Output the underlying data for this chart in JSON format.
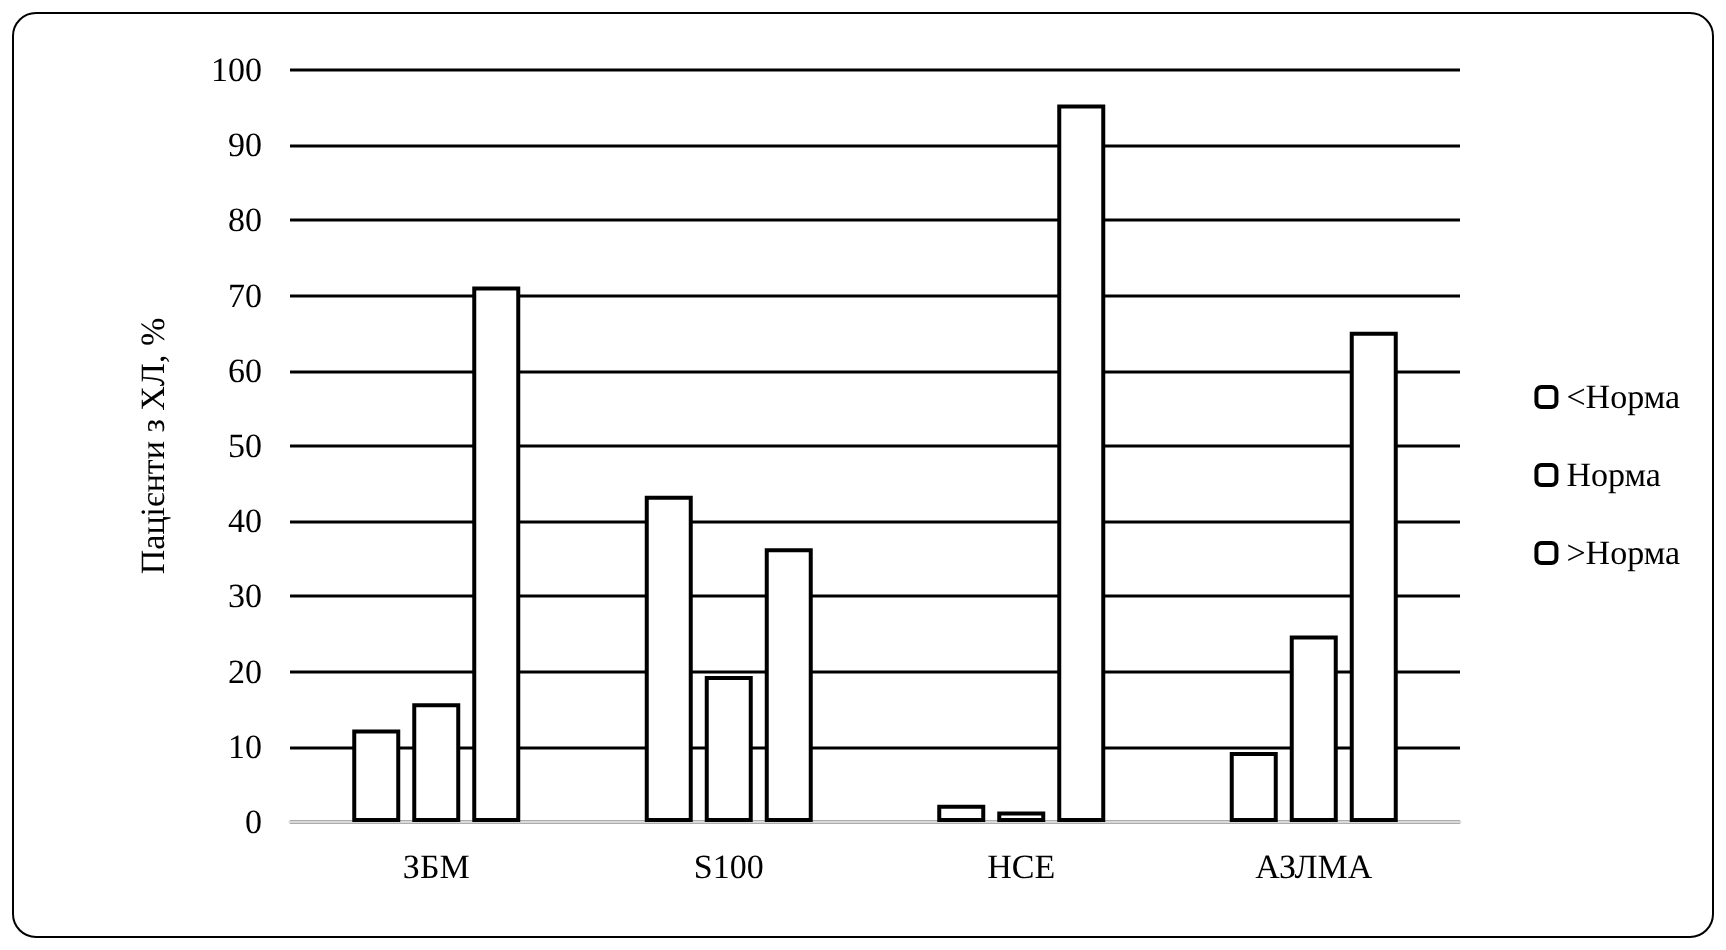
{
  "chart_data": {
    "type": "bar",
    "ylabel": "Пацієнти з ХЛ, %",
    "categories": [
      "ЗБМ",
      "S100",
      "НСЕ",
      "АЗЛМА"
    ],
    "series": [
      {
        "name": "<Норма",
        "color": "#ffffff",
        "values": [
          12.3,
          43.4,
          2.3,
          9.3
        ]
      },
      {
        "name": "Норма",
        "color": "#ffffff",
        "values": [
          15.8,
          19.4,
          1.4,
          24.8
        ]
      },
      {
        "name": ">Норма",
        "color": "#ffffff",
        "values": [
          71.2,
          36.4,
          95.4,
          65.2
        ]
      }
    ],
    "ylim": [
      0,
      100
    ],
    "yticks": [
      0,
      10,
      20,
      30,
      40,
      50,
      60,
      70,
      80,
      90,
      100
    ],
    "grid": "y",
    "legend": "right"
  }
}
